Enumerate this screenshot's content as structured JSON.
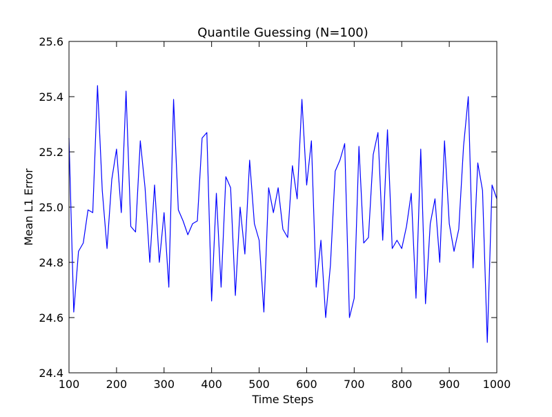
{
  "chart_data": {
    "type": "line",
    "title": "Quantile Guessing (N=100)",
    "xlabel": "Time Steps",
    "ylabel": "Mean L1 Error",
    "xlim": [
      100,
      1000
    ],
    "ylim": [
      24.4,
      25.6
    ],
    "x_ticks": [
      100,
      200,
      300,
      400,
      500,
      600,
      700,
      800,
      900,
      1000
    ],
    "y_ticks": [
      24.4,
      24.6,
      24.8,
      25.0,
      25.2,
      25.4,
      25.6
    ],
    "x_tick_labels": [
      "100",
      "200",
      "300",
      "400",
      "500",
      "600",
      "700",
      "800",
      "900",
      "1000"
    ],
    "y_tick_labels": [
      "24.4",
      "24.6",
      "24.8",
      "25.0",
      "25.2",
      "25.4",
      "25.6"
    ],
    "grid": false,
    "legend": "none",
    "line_color": "#0000ff",
    "series": [
      {
        "x": [
          100,
          110,
          120,
          130,
          140,
          150,
          160,
          170,
          180,
          190,
          200,
          210,
          220,
          230,
          240,
          250,
          260,
          270,
          280,
          290,
          300,
          310,
          320,
          330,
          340,
          350,
          360,
          370,
          380,
          390,
          400,
          410,
          420,
          430,
          440,
          450,
          460,
          470,
          480,
          490,
          500,
          510,
          520,
          530,
          540,
          550,
          560,
          570,
          580,
          590,
          600,
          610,
          620,
          630,
          640,
          650,
          660,
          670,
          680,
          690,
          700,
          710,
          720,
          730,
          740,
          750,
          760,
          770,
          780,
          790,
          800,
          810,
          820,
          830,
          840,
          850,
          860,
          870,
          880,
          890,
          900,
          910,
          920,
          930,
          940,
          950,
          960,
          970,
          980,
          990,
          1000
        ],
        "values": [
          25.25,
          24.62,
          24.84,
          24.87,
          24.99,
          24.98,
          25.44,
          25.06,
          24.85,
          25.1,
          25.21,
          24.98,
          25.42,
          24.93,
          24.91,
          25.24,
          25.07,
          24.8,
          25.08,
          24.8,
          24.98,
          24.71,
          25.39,
          24.99,
          24.95,
          24.9,
          24.94,
          24.95,
          25.25,
          25.27,
          24.66,
          25.05,
          24.71,
          25.11,
          25.07,
          24.68,
          25.0,
          24.83,
          25.17,
          24.94,
          24.88,
          24.62,
          25.07,
          24.98,
          25.07,
          24.92,
          24.89,
          25.15,
          25.03,
          25.39,
          25.08,
          25.24,
          24.71,
          24.88,
          24.6,
          24.79,
          25.13,
          25.17,
          25.23,
          24.6,
          24.67,
          25.22,
          24.87,
          24.89,
          25.19,
          25.27,
          24.88,
          25.28,
          24.85,
          24.88,
          24.85,
          24.93,
          25.05,
          24.67,
          25.21,
          24.65,
          24.94,
          25.03,
          24.8,
          25.24,
          24.94,
          24.84,
          24.92,
          25.22,
          25.4,
          24.78,
          25.16,
          25.06,
          24.51,
          25.08,
          25.03
        ]
      }
    ]
  }
}
